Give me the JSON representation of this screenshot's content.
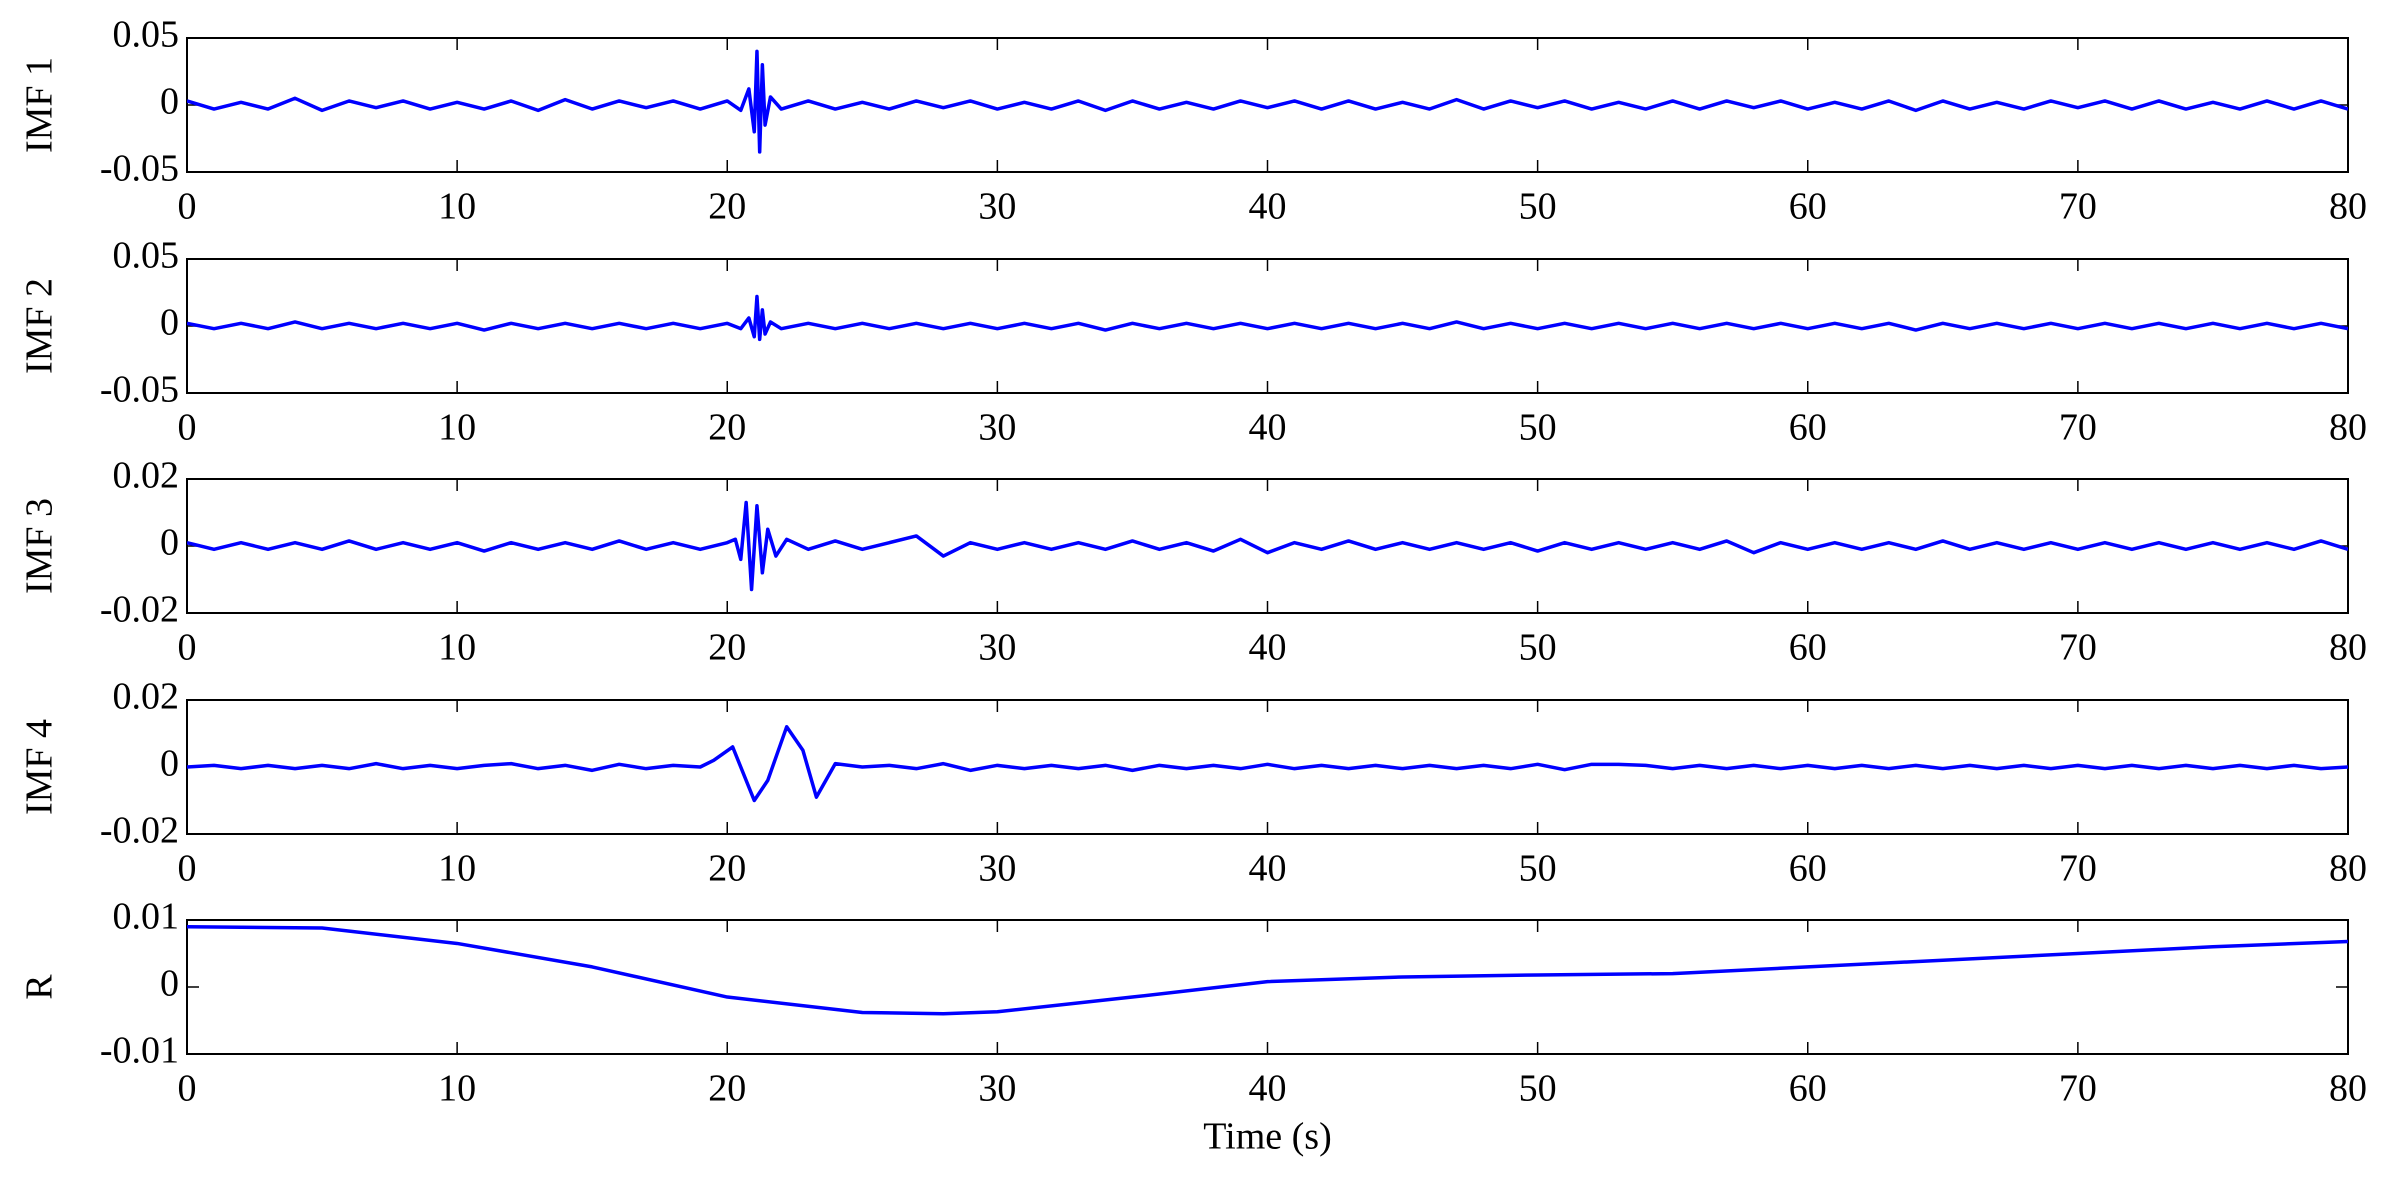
{
  "chart_data": [
    {
      "type": "line",
      "ylabel": "IMF 1",
      "color": "#0000ff",
      "x": [
        0,
        1,
        2,
        3,
        4,
        5,
        6,
        7,
        8,
        9,
        10,
        11,
        12,
        13,
        14,
        15,
        16,
        17,
        18,
        19,
        20,
        20.5,
        20.8,
        21,
        21.1,
        21.2,
        21.3,
        21.4,
        21.6,
        22,
        23,
        24,
        25,
        26,
        27,
        28,
        29,
        30,
        31,
        32,
        33,
        34,
        35,
        36,
        37,
        38,
        39,
        40,
        41,
        42,
        43,
        44,
        45,
        46,
        47,
        48,
        49,
        50,
        51,
        52,
        53,
        54,
        55,
        56,
        57,
        58,
        59,
        60,
        61,
        62,
        63,
        64,
        65,
        66,
        67,
        68,
        69,
        70,
        71,
        72,
        73,
        74,
        75,
        76,
        77,
        78,
        79,
        80
      ],
      "values": [
        0.003,
        -0.003,
        0.002,
        -0.003,
        0.005,
        -0.004,
        0.003,
        -0.002,
        0.003,
        -0.003,
        0.002,
        -0.003,
        0.003,
        -0.004,
        0.004,
        -0.003,
        0.003,
        -0.002,
        0.003,
        -0.003,
        0.003,
        -0.004,
        0.012,
        -0.02,
        0.04,
        -0.035,
        0.03,
        -0.015,
        0.006,
        -0.003,
        0.003,
        -0.003,
        0.002,
        -0.003,
        0.003,
        -0.002,
        0.003,
        -0.003,
        0.002,
        -0.003,
        0.003,
        -0.004,
        0.003,
        -0.003,
        0.002,
        -0.003,
        0.003,
        -0.002,
        0.003,
        -0.003,
        0.003,
        -0.003,
        0.002,
        -0.003,
        0.004,
        -0.003,
        0.003,
        -0.002,
        0.003,
        -0.003,
        0.002,
        -0.003,
        0.003,
        -0.003,
        0.003,
        -0.002,
        0.003,
        -0.003,
        0.002,
        -0.003,
        0.003,
        -0.004,
        0.003,
        -0.003,
        0.002,
        -0.003,
        0.003,
        -0.002,
        0.003,
        -0.003,
        0.003,
        -0.003,
        0.002,
        -0.003,
        0.003,
        -0.003,
        0.003,
        -0.003
      ],
      "xlim": [
        0,
        80
      ],
      "xticks": [
        0,
        10,
        20,
        30,
        40,
        50,
        60,
        70,
        80
      ],
      "ylim": [
        -0.05,
        0.05
      ],
      "yticks": [
        -0.05,
        0,
        0.05
      ]
    },
    {
      "type": "line",
      "ylabel": "IMF 2",
      "color": "#0000ff",
      "x": [
        0,
        1,
        2,
        3,
        4,
        5,
        6,
        7,
        8,
        9,
        10,
        11,
        12,
        13,
        14,
        15,
        16,
        17,
        18,
        19,
        20,
        20.5,
        20.8,
        21,
        21.1,
        21.2,
        21.3,
        21.4,
        21.6,
        22,
        23,
        24,
        25,
        26,
        27,
        28,
        29,
        30,
        31,
        32,
        33,
        34,
        35,
        36,
        37,
        38,
        39,
        40,
        41,
        42,
        43,
        44,
        45,
        46,
        47,
        48,
        49,
        50,
        51,
        52,
        53,
        54,
        55,
        56,
        57,
        58,
        59,
        60,
        61,
        62,
        63,
        64,
        65,
        66,
        67,
        68,
        69,
        70,
        71,
        72,
        73,
        74,
        75,
        76,
        77,
        78,
        79,
        80
      ],
      "values": [
        0.002,
        -0.002,
        0.002,
        -0.002,
        0.003,
        -0.002,
        0.002,
        -0.002,
        0.002,
        -0.002,
        0.002,
        -0.003,
        0.002,
        -0.002,
        0.002,
        -0.002,
        0.002,
        -0.002,
        0.002,
        -0.002,
        0.002,
        -0.002,
        0.006,
        -0.008,
        0.022,
        -0.01,
        0.012,
        -0.006,
        0.003,
        -0.002,
        0.002,
        -0.002,
        0.002,
        -0.002,
        0.002,
        -0.002,
        0.002,
        -0.002,
        0.002,
        -0.002,
        0.002,
        -0.003,
        0.002,
        -0.002,
        0.002,
        -0.002,
        0.002,
        -0.002,
        0.002,
        -0.002,
        0.002,
        -0.002,
        0.002,
        -0.002,
        0.003,
        -0.002,
        0.002,
        -0.002,
        0.002,
        -0.002,
        0.002,
        -0.002,
        0.002,
        -0.002,
        0.002,
        -0.002,
        0.002,
        -0.002,
        0.002,
        -0.002,
        0.002,
        -0.003,
        0.002,
        -0.002,
        0.002,
        -0.002,
        0.002,
        -0.002,
        0.002,
        -0.002,
        0.002,
        -0.002,
        0.002,
        -0.002,
        0.002,
        -0.002,
        0.002,
        -0.002
      ],
      "xlim": [
        0,
        80
      ],
      "xticks": [
        0,
        10,
        20,
        30,
        40,
        50,
        60,
        70,
        80
      ],
      "ylim": [
        -0.05,
        0.05
      ],
      "yticks": [
        -0.05,
        0,
        0.05
      ]
    },
    {
      "type": "line",
      "ylabel": "IMF 3",
      "color": "#0000ff",
      "x": [
        0,
        1,
        2,
        3,
        4,
        5,
        6,
        7,
        8,
        9,
        10,
        11,
        12,
        13,
        14,
        15,
        16,
        17,
        18,
        19,
        20,
        20.3,
        20.5,
        20.7,
        20.9,
        21.1,
        21.3,
        21.5,
        21.8,
        22.2,
        23,
        24,
        25,
        26,
        27,
        28,
        29,
        30,
        31,
        32,
        33,
        34,
        35,
        36,
        37,
        38,
        39,
        40,
        41,
        42,
        43,
        44,
        45,
        46,
        47,
        48,
        49,
        50,
        51,
        52,
        53,
        54,
        55,
        56,
        57,
        58,
        59,
        60,
        61,
        62,
        63,
        64,
        65,
        66,
        67,
        68,
        69,
        70,
        71,
        72,
        73,
        74,
        75,
        76,
        77,
        78,
        79,
        80
      ],
      "values": [
        0.001,
        -0.001,
        0.001,
        -0.001,
        0.001,
        -0.001,
        0.0015,
        -0.001,
        0.001,
        -0.001,
        0.001,
        -0.0015,
        0.001,
        -0.001,
        0.001,
        -0.001,
        0.0015,
        -0.001,
        0.001,
        -0.001,
        0.001,
        0.002,
        -0.004,
        0.013,
        -0.013,
        0.012,
        -0.008,
        0.005,
        -0.003,
        0.002,
        -0.001,
        0.0015,
        -0.001,
        0.001,
        0.003,
        -0.003,
        0.001,
        -0.001,
        0.001,
        -0.001,
        0.001,
        -0.001,
        0.0015,
        -0.001,
        0.001,
        -0.0015,
        0.002,
        -0.002,
        0.001,
        -0.001,
        0.0015,
        -0.001,
        0.001,
        -0.001,
        0.001,
        -0.001,
        0.001,
        -0.0015,
        0.001,
        -0.001,
        0.001,
        -0.001,
        0.001,
        -0.001,
        0.0015,
        -0.002,
        0.001,
        -0.001,
        0.001,
        -0.001,
        0.001,
        -0.001,
        0.0015,
        -0.001,
        0.001,
        -0.001,
        0.001,
        -0.001,
        0.001,
        -0.001,
        0.001,
        -0.001,
        0.001,
        -0.001,
        0.001,
        -0.001,
        0.0015,
        -0.001
      ],
      "xlim": [
        0,
        80
      ],
      "xticks": [
        0,
        10,
        20,
        30,
        40,
        50,
        60,
        70,
        80
      ],
      "ylim": [
        -0.02,
        0.02
      ],
      "yticks": [
        -0.02,
        0,
        0.02
      ]
    },
    {
      "type": "line",
      "ylabel": "IMF 4",
      "color": "#0000ff",
      "x": [
        0,
        1,
        2,
        3,
        4,
        5,
        6,
        7,
        8,
        9,
        10,
        11,
        12,
        13,
        14,
        15,
        16,
        17,
        18,
        19,
        19.5,
        20.2,
        21,
        21.5,
        22.2,
        22.8,
        23.3,
        24,
        25,
        26,
        27,
        28,
        29,
        30,
        31,
        32,
        33,
        34,
        35,
        36,
        37,
        38,
        39,
        40,
        41,
        42,
        43,
        44,
        45,
        46,
        47,
        48,
        49,
        50,
        51,
        52,
        53,
        54,
        55,
        56,
        57,
        58,
        59,
        60,
        61,
        62,
        63,
        64,
        65,
        66,
        67,
        68,
        69,
        70,
        71,
        72,
        73,
        74,
        75,
        76,
        77,
        78,
        79,
        80
      ],
      "values": [
        0,
        0.0005,
        -0.0005,
        0.0005,
        -0.0005,
        0.0005,
        -0.0005,
        0.001,
        -0.0005,
        0.0005,
        -0.0005,
        0.0005,
        0.001,
        -0.0005,
        0.0005,
        -0.001,
        0.0008,
        -0.0005,
        0.0005,
        0,
        0.002,
        0.006,
        -0.01,
        -0.004,
        0.012,
        0.005,
        -0.009,
        0.001,
        0,
        0.0005,
        -0.0005,
        0.001,
        -0.001,
        0.0005,
        -0.0005,
        0.0005,
        -0.0005,
        0.0005,
        -0.001,
        0.0005,
        -0.0005,
        0.0005,
        -0.0005,
        0.0008,
        -0.0005,
        0.0005,
        -0.0005,
        0.0005,
        -0.0005,
        0.0005,
        -0.0005,
        0.0005,
        -0.0005,
        0.0008,
        -0.0008,
        0.0008,
        0.0008,
        0.0005,
        -0.0005,
        0.0005,
        -0.0005,
        0.0005,
        -0.0005,
        0.0005,
        -0.0005,
        0.0005,
        -0.0005,
        0.0005,
        -0.0005,
        0.0005,
        -0.0005,
        0.0005,
        -0.0005,
        0.0005,
        -0.0005,
        0.0005,
        -0.0005,
        0.0005,
        -0.0005,
        0.0005,
        -0.0005,
        0.0005,
        -0.0005,
        0
      ],
      "xlim": [
        0,
        80
      ],
      "xticks": [
        0,
        10,
        20,
        30,
        40,
        50,
        60,
        70,
        80
      ],
      "ylim": [
        -0.02,
        0.02
      ],
      "yticks": [
        -0.02,
        0,
        0.02
      ]
    },
    {
      "type": "line",
      "ylabel": "R",
      "xlabel": "Time (s)",
      "color": "#0000ff",
      "x": [
        0,
        5,
        10,
        15,
        20,
        25,
        28,
        30,
        35,
        40,
        45,
        50,
        55,
        60,
        65,
        70,
        75,
        80
      ],
      "values": [
        0.009,
        0.0088,
        0.0065,
        0.003,
        -0.0015,
        -0.0038,
        -0.004,
        -0.0037,
        -0.0015,
        0.0008,
        0.0015,
        0.0018,
        0.002,
        0.003,
        0.004,
        0.005,
        0.006,
        0.0068
      ],
      "xlim": [
        0,
        80
      ],
      "xticks": [
        0,
        10,
        20,
        30,
        40,
        50,
        60,
        70,
        80
      ],
      "ylim": [
        -0.01,
        0.01
      ],
      "yticks": [
        -0.01,
        0,
        0.01
      ]
    }
  ]
}
